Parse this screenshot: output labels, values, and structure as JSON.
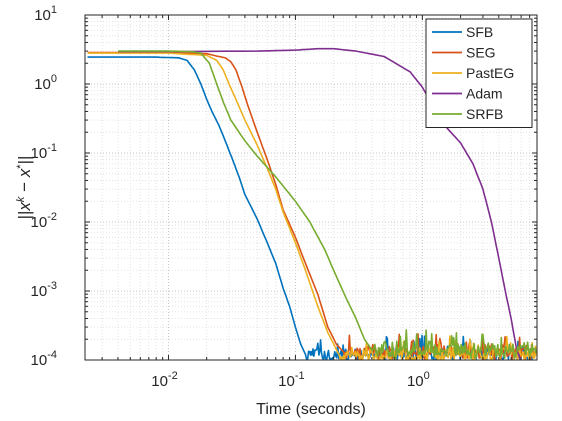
{
  "chart_data": {
    "type": "line",
    "title": "",
    "xlabel": "Time (seconds)",
    "ylabel": "||x^k − x*||",
    "xscale": "log",
    "yscale": "log",
    "xlim": [
      0.0022,
      8.0
    ],
    "ylim": [
      0.0001,
      10
    ],
    "grid": true,
    "legend_position": "top-right",
    "x_ticks": [
      {
        "value": 0.01,
        "base": "10",
        "exp": "-2"
      },
      {
        "value": 0.1,
        "base": "10",
        "exp": "-1"
      },
      {
        "value": 1,
        "base": "10",
        "exp": "0"
      }
    ],
    "y_ticks": [
      {
        "value": 10,
        "base": "10",
        "exp": "1"
      },
      {
        "value": 1,
        "base": "10",
        "exp": "0"
      },
      {
        "value": 0.1,
        "base": "10",
        "exp": "-1"
      },
      {
        "value": 0.01,
        "base": "10",
        "exp": "-2"
      },
      {
        "value": 0.001,
        "base": "10",
        "exp": "-3"
      },
      {
        "value": 0.0001,
        "base": "10",
        "exp": "-4"
      }
    ],
    "series": [
      {
        "name": "SFB",
        "color": "#0072BD",
        "noise_after": 0.12,
        "noise_floor": 0.00012,
        "points": [
          [
            0.0023,
            2.45
          ],
          [
            0.005,
            2.45
          ],
          [
            0.008,
            2.45
          ],
          [
            0.012,
            2.4
          ],
          [
            0.014,
            2.2
          ],
          [
            0.016,
            1.6
          ],
          [
            0.018,
            1.0
          ],
          [
            0.02,
            0.6
          ],
          [
            0.022,
            0.4
          ],
          [
            0.025,
            0.25
          ],
          [
            0.028,
            0.15
          ],
          [
            0.032,
            0.08
          ],
          [
            0.036,
            0.045
          ],
          [
            0.04,
            0.025
          ],
          [
            0.05,
            0.011
          ],
          [
            0.06,
            0.005
          ],
          [
            0.07,
            0.0025
          ],
          [
            0.08,
            0.0011
          ],
          [
            0.09,
            0.0006
          ],
          [
            0.1,
            0.0003
          ],
          [
            0.11,
            0.00017
          ],
          [
            0.12,
            0.00012
          ]
        ]
      },
      {
        "name": "SEG",
        "color": "#D95319",
        "noise_after": 0.24,
        "noise_floor": 0.00013,
        "points": [
          [
            0.0023,
            2.85
          ],
          [
            0.01,
            2.85
          ],
          [
            0.02,
            2.75
          ],
          [
            0.025,
            2.5
          ],
          [
            0.028,
            2.4
          ],
          [
            0.031,
            2.1
          ],
          [
            0.034,
            1.6
          ],
          [
            0.038,
            0.9
          ],
          [
            0.042,
            0.5
          ],
          [
            0.05,
            0.2
          ],
          [
            0.06,
            0.08
          ],
          [
            0.07,
            0.035
          ],
          [
            0.08,
            0.015
          ],
          [
            0.1,
            0.006
          ],
          [
            0.12,
            0.0025
          ],
          [
            0.15,
            0.0009
          ],
          [
            0.18,
            0.0003
          ],
          [
            0.21,
            0.00017
          ],
          [
            0.24,
            0.00013
          ]
        ]
      },
      {
        "name": "PastEG",
        "color": "#EDB120",
        "noise_after": 0.22,
        "noise_floor": 0.00012,
        "points": [
          [
            0.0023,
            2.8
          ],
          [
            0.01,
            2.8
          ],
          [
            0.02,
            2.6
          ],
          [
            0.024,
            2.2
          ],
          [
            0.027,
            1.6
          ],
          [
            0.03,
            1.0
          ],
          [
            0.034,
            0.6
          ],
          [
            0.04,
            0.3
          ],
          [
            0.05,
            0.13
          ],
          [
            0.06,
            0.06
          ],
          [
            0.07,
            0.03
          ],
          [
            0.08,
            0.014
          ],
          [
            0.1,
            0.005
          ],
          [
            0.12,
            0.002
          ],
          [
            0.15,
            0.0006
          ],
          [
            0.18,
            0.00025
          ],
          [
            0.22,
            0.00012
          ]
        ]
      },
      {
        "name": "Adam",
        "color": "#7E2F8E",
        "noise_after": 99,
        "noise_floor": 0.0001,
        "points": [
          [
            0.004,
            2.95
          ],
          [
            0.01,
            2.95
          ],
          [
            0.05,
            3.0
          ],
          [
            0.1,
            3.1
          ],
          [
            0.15,
            3.25
          ],
          [
            0.2,
            3.25
          ],
          [
            0.3,
            3.0
          ],
          [
            0.5,
            2.5
          ],
          [
            0.8,
            1.5
          ],
          [
            1.0,
            0.9
          ],
          [
            1.2,
            0.5
          ],
          [
            1.5,
            0.25
          ],
          [
            2.0,
            0.14
          ],
          [
            2.5,
            0.07
          ],
          [
            3.0,
            0.03
          ],
          [
            3.5,
            0.01
          ],
          [
            4.0,
            0.003
          ],
          [
            4.5,
            0.001
          ],
          [
            5.0,
            0.0004
          ],
          [
            5.5,
            0.00015
          ],
          [
            5.9,
            0.0001
          ]
        ]
      },
      {
        "name": "SRFB",
        "color": "#77AC30",
        "noise_after": 0.4,
        "noise_floor": 0.00014,
        "points": [
          [
            0.004,
            3.0
          ],
          [
            0.01,
            3.0
          ],
          [
            0.015,
            2.95
          ],
          [
            0.018,
            2.8
          ],
          [
            0.021,
            2.0
          ],
          [
            0.024,
            1.0
          ],
          [
            0.027,
            0.55
          ],
          [
            0.031,
            0.3
          ],
          [
            0.04,
            0.15
          ],
          [
            0.05,
            0.09
          ],
          [
            0.07,
            0.045
          ],
          [
            0.1,
            0.02
          ],
          [
            0.13,
            0.01
          ],
          [
            0.17,
            0.004
          ],
          [
            0.2,
            0.002
          ],
          [
            0.25,
            0.0008
          ],
          [
            0.3,
            0.0004
          ],
          [
            0.35,
            0.0002
          ],
          [
            0.4,
            0.00014
          ]
        ]
      }
    ]
  }
}
